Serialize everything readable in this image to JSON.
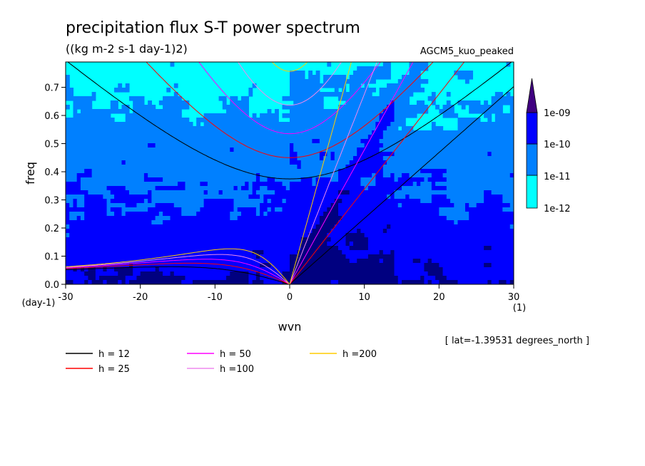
{
  "chart_data": {
    "type": "heatmap",
    "title": "precipitation flux S-T power spectrum",
    "units": "((kg m-2 s-1 day-1)2)",
    "model": "AGCM5_kuo_peaked",
    "xlabel": "wvn",
    "ylabel": "freq",
    "x_unit": "(1)",
    "y_unit": "(day-1)",
    "xlim": [
      -30,
      30
    ],
    "ylim": [
      0,
      0.79
    ],
    "xticks": [
      "-30",
      "-20",
      "-10",
      "0",
      "10",
      "20",
      "30"
    ],
    "yticks": [
      "0.0",
      "0.1",
      "0.2",
      "0.3",
      "0.4",
      "0.5",
      "0.6",
      "0.7"
    ],
    "latitude_note": "[ lat=-1.39531 degrees_north ]",
    "colorbar": {
      "labels": [
        "1e-12",
        "1e-11",
        "1e-10",
        "1e-09"
      ],
      "colors": [
        "#00ffff",
        "#0080ff",
        "#0000ff",
        "#000080",
        "#400080"
      ]
    },
    "dispersion_curves": [
      {
        "label": "h = 12",
        "h": 12,
        "color": "#000000"
      },
      {
        "label": "h = 25",
        "h": 25,
        "color": "#ff0000"
      },
      {
        "label": "h = 50",
        "h": 50,
        "color": "#ff00ff"
      },
      {
        "label": "h =100",
        "h": 100,
        "color": "#ee88ee"
      },
      {
        "label": "h =200",
        "h": 200,
        "color": "#ffcc00"
      }
    ]
  }
}
